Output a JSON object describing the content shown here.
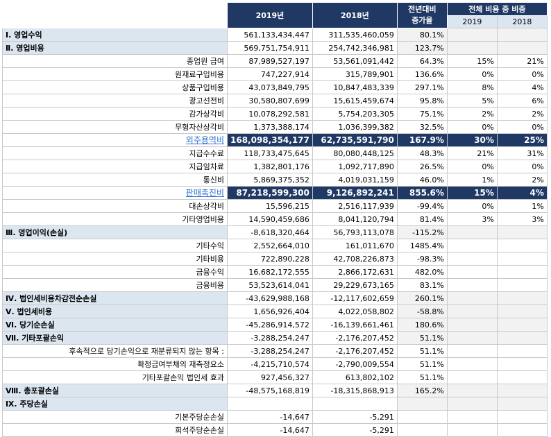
{
  "header": {
    "col_2019": "2019년",
    "col_2018": "2018년",
    "col_change_line1": "전년대비",
    "col_change_line2": "증가율",
    "col_share": "전체 비용 중 비중",
    "col_share_2019": "2019",
    "col_share_2018": "2018"
  },
  "rows": [
    {
      "label": "Ⅰ. 영업수익",
      "type": "section",
      "v2019": "561,133,434,447",
      "v2018": "311,535,460,059",
      "change": "80.1%",
      "s2019": "",
      "s2018": ""
    },
    {
      "label": "Ⅱ. 영업비용",
      "type": "section",
      "v2019": "569,751,754,911",
      "v2018": "254,742,346,981",
      "change": "123.7%",
      "s2019": "",
      "s2018": ""
    },
    {
      "label": "종업원 급여",
      "type": "sub",
      "v2019": "87,989,527,197",
      "v2018": "53,561,091,442",
      "change": "64.3%",
      "s2019": "15%",
      "s2018": "21%"
    },
    {
      "label": "원재료구입비용",
      "type": "sub",
      "v2019": "747,227,914",
      "v2018": "315,789,901",
      "change": "136.6%",
      "s2019": "0%",
      "s2018": "0%"
    },
    {
      "label": "상품구입비용",
      "type": "sub",
      "v2019": "43,073,849,795",
      "v2018": "10,847,483,339",
      "change": "297.1%",
      "s2019": "8%",
      "s2018": "4%"
    },
    {
      "label": "광고선전비",
      "type": "sub",
      "v2019": "30,580,807,699",
      "v2018": "15,615,459,674",
      "change": "95.8%",
      "s2019": "5%",
      "s2018": "6%"
    },
    {
      "label": "감가상각비",
      "type": "sub",
      "v2019": "10,078,292,581",
      "v2018": "5,754,203,305",
      "change": "75.1%",
      "s2019": "2%",
      "s2018": "2%"
    },
    {
      "label": "무형자산상각비",
      "type": "sub",
      "v2019": "1,373,388,174",
      "v2018": "1,036,399,382",
      "change": "32.5%",
      "s2019": "0%",
      "s2018": "0%"
    },
    {
      "label": "외주용역비",
      "type": "highlight",
      "v2019": "168,098,354,177",
      "v2018": "62,735,591,790",
      "change": "167.9%",
      "s2019": "30%",
      "s2018": "25%"
    },
    {
      "label": "지급수수료",
      "type": "sub",
      "v2019": "118,733,475,645",
      "v2018": "80,080,448,125",
      "change": "48.3%",
      "s2019": "21%",
      "s2018": "31%"
    },
    {
      "label": "지급임차료",
      "type": "sub",
      "v2019": "1,382,801,176",
      "v2018": "1,092,717,890",
      "change": "26.5%",
      "s2019": "0%",
      "s2018": "0%"
    },
    {
      "label": "통신비",
      "type": "sub",
      "v2019": "5,869,375,352",
      "v2018": "4,019,031,159",
      "change": "46.0%",
      "s2019": "1%",
      "s2018": "2%"
    },
    {
      "label": "판매촉진비",
      "type": "highlight",
      "v2019": "87,218,599,300",
      "v2018": "9,126,892,241",
      "change": "855.6%",
      "s2019": "15%",
      "s2018": "4%"
    },
    {
      "label": "대손상각비",
      "type": "sub",
      "v2019": "15,596,215",
      "v2018": "2,516,117,939",
      "change": "-99.4%",
      "s2019": "0%",
      "s2018": "1%"
    },
    {
      "label": "기타영업비용",
      "type": "sub",
      "v2019": "14,590,459,686",
      "v2018": "8,041,120,794",
      "change": "81.4%",
      "s2019": "3%",
      "s2018": "3%"
    },
    {
      "label": "Ⅲ. 영업이익(손실)",
      "type": "section",
      "v2019": "-8,618,320,464",
      "v2018": "56,793,113,078",
      "change": "-115.2%",
      "s2019": "",
      "s2018": ""
    },
    {
      "label": "기타수익",
      "type": "sub",
      "v2019": "2,552,664,010",
      "v2018": "161,011,670",
      "change": "1485.4%",
      "s2019": "",
      "s2018": ""
    },
    {
      "label": "기타비용",
      "type": "sub",
      "v2019": "722,890,228",
      "v2018": "42,708,226,873",
      "change": "-98.3%",
      "s2019": "",
      "s2018": ""
    },
    {
      "label": "금융수익",
      "type": "sub",
      "v2019": "16,682,172,555",
      "v2018": "2,866,172,631",
      "change": "482.0%",
      "s2019": "",
      "s2018": ""
    },
    {
      "label": "금융비용",
      "type": "sub",
      "v2019": "53,523,614,041",
      "v2018": "29,229,673,165",
      "change": "83.1%",
      "s2019": "",
      "s2018": ""
    },
    {
      "label": "Ⅳ. 법인세비용차감전순손실",
      "type": "section",
      "v2019": "-43,629,988,168",
      "v2018": "-12,117,602,659",
      "change": "260.1%",
      "s2019": "",
      "s2018": ""
    },
    {
      "label": "Ⅴ. 법인세비용",
      "type": "section",
      "v2019": "1,656,926,404",
      "v2018": "4,022,058,802",
      "change": "-58.8%",
      "s2019": "",
      "s2018": ""
    },
    {
      "label": "Ⅵ. 당기순손실",
      "type": "section",
      "v2019": "-45,286,914,572",
      "v2018": "-16,139,661,461",
      "change": "180.6%",
      "s2019": "",
      "s2018": ""
    },
    {
      "label": "Ⅶ. 기타포괄손익",
      "type": "section",
      "v2019": "-3,288,254,247",
      "v2018": "-2,176,207,452",
      "change": "51.1%",
      "s2019": "",
      "s2018": ""
    },
    {
      "label": "후속적으로 당기손익으로 재분류되지 않는 항목 :",
      "type": "sub",
      "v2019": "-3,288,254,247",
      "v2018": "-2,176,207,452",
      "change": "51.1%",
      "s2019": "",
      "s2018": ""
    },
    {
      "label": "확정급여부채의 재측정요소",
      "type": "sub",
      "v2019": "-4,215,710,574",
      "v2018": "-2,790,009,554",
      "change": "51.1%",
      "s2019": "",
      "s2018": ""
    },
    {
      "label": "기타포괄손익 법인세 효과",
      "type": "sub",
      "v2019": "927,456,327",
      "v2018": "613,802,102",
      "change": "51.1%",
      "s2019": "",
      "s2018": ""
    },
    {
      "label": "Ⅷ. 총포괄손실",
      "type": "section",
      "v2019": "-48,575,168,819",
      "v2018": "-18,315,868,913",
      "change": "165.2%",
      "s2019": "",
      "s2018": ""
    },
    {
      "label": "Ⅸ. 주당손실",
      "type": "section",
      "v2019": "",
      "v2018": "",
      "change": "",
      "s2019": "",
      "s2018": ""
    },
    {
      "label": "기본주당순손실",
      "type": "sub",
      "v2019": "-14,647",
      "v2018": "-5,291",
      "change": "",
      "s2019": "",
      "s2018": ""
    },
    {
      "label": "희석주당순손실",
      "type": "sub",
      "v2019": "-14,647",
      "v2018": "-5,291",
      "change": "",
      "s2019": "",
      "s2018": ""
    }
  ],
  "colors": {
    "header_bg": "#1f3864",
    "section_bg": "#dce6f1",
    "link_text": "#2f6fd1"
  }
}
